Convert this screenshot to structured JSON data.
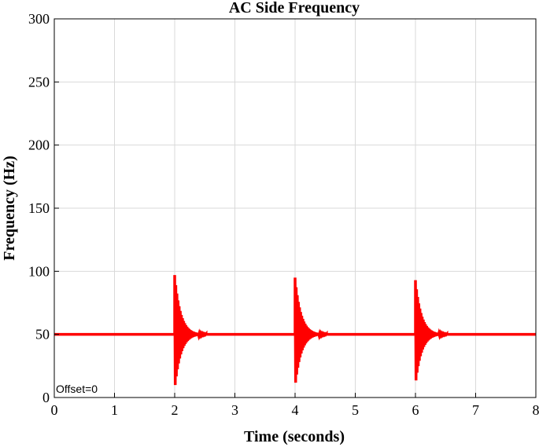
{
  "chart_data": {
    "type": "line",
    "title": "AC Side Frequency",
    "xlabel": "Time (seconds)",
    "ylabel": "Frequency (Hz)",
    "xlim": [
      0,
      8
    ],
    "ylim": [
      0,
      300
    ],
    "xticks": [
      "0",
      "1",
      "2",
      "3",
      "4",
      "5",
      "6",
      "7",
      "8"
    ],
    "yticks": [
      "0",
      "50",
      "100",
      "150",
      "200",
      "250",
      "300"
    ],
    "grid": true,
    "annotation": "Offset=0",
    "colors": {
      "series": "#ff0000",
      "grid": "#d9d9d9",
      "axis": "#000000"
    },
    "series": [
      {
        "baseline": 50,
        "x_range": [
          0,
          8
        ],
        "transients": [
          {
            "start": 2.0,
            "end": 2.52,
            "peak_high": 97,
            "peak_low": 6
          },
          {
            "start": 4.0,
            "end": 4.52,
            "peak_high": 95,
            "peak_low": 8
          },
          {
            "start": 6.0,
            "end": 6.52,
            "peak_high": 93,
            "peak_low": 10
          }
        ]
      }
    ]
  }
}
